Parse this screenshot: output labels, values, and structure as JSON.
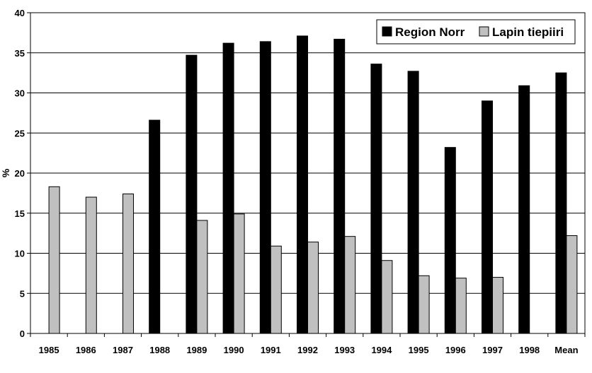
{
  "chart_data": {
    "type": "bar",
    "categories": [
      "1985",
      "1986",
      "1987",
      "1988",
      "1989",
      "1990",
      "1991",
      "1992",
      "1993",
      "1994",
      "1995",
      "1996",
      "1997",
      "1998",
      "Mean"
    ],
    "series": [
      {
        "name": "Region Norr",
        "color": "#000000",
        "values": [
          null,
          null,
          null,
          26.6,
          34.7,
          36.2,
          36.4,
          37.1,
          36.7,
          33.6,
          32.7,
          23.2,
          29.0,
          30.9,
          32.5
        ]
      },
      {
        "name": "Lapin tiepiiri",
        "color": "#c0c0c0",
        "values": [
          18.3,
          17.0,
          17.4,
          null,
          14.1,
          14.9,
          10.9,
          11.4,
          12.1,
          9.1,
          7.2,
          6.9,
          7.0,
          null,
          12.2
        ]
      }
    ],
    "ylabel": "%",
    "ylim": [
      0,
      40
    ],
    "yticks": [
      "0",
      "5",
      "10",
      "15",
      "20",
      "25",
      "30",
      "35",
      "40"
    ],
    "grid": true,
    "legend_position": "top-right"
  }
}
